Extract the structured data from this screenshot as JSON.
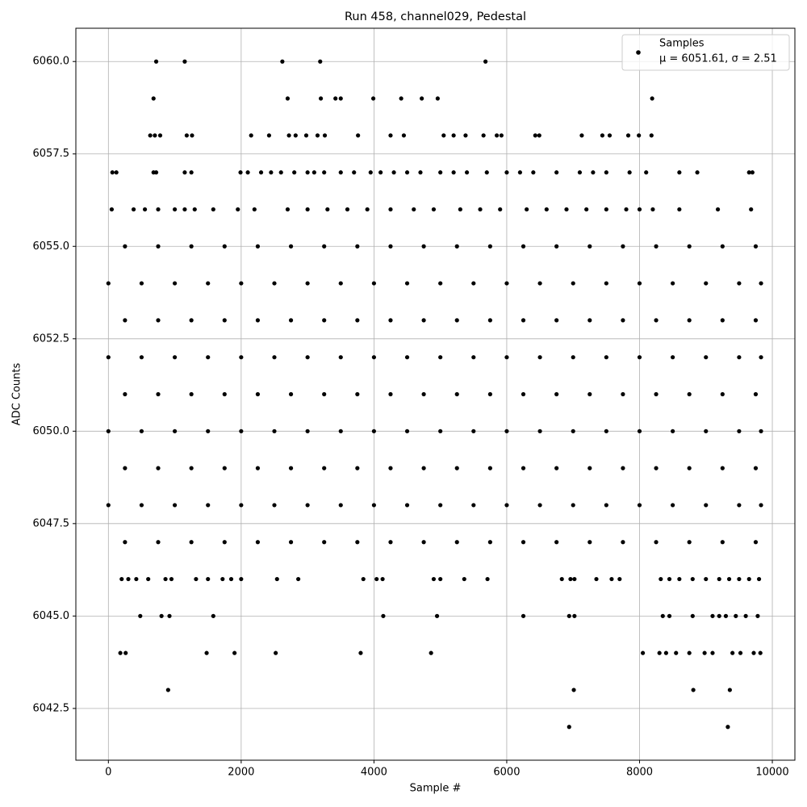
{
  "chart_data": {
    "type": "scatter",
    "title": "Run 458, channel029, Pedestal",
    "x_label": "Sample #",
    "y_label": "ADC Counts",
    "legend_note": "μ = 6051.61, σ = 2.51",
    "legend_position": "upper right",
    "grid": true,
    "xlim": [
      -490,
      10340
    ],
    "ylim": [
      6041.1,
      6060.9
    ],
    "xticks": [
      0,
      2000,
      4000,
      6000,
      8000,
      10000
    ],
    "yticks": [
      6042.5,
      {
        "value": 6045,
        "label": "6045.0"
      },
      6047.5,
      {
        "value": 6050,
        "label": "6050.0"
      },
      6052.5,
      {
        "value": 6055,
        "label": "6055.0"
      },
      6057.5,
      {
        "value": 6060,
        "label": "6060.0"
      }
    ],
    "x": [
      720,
      1150,
      2620,
      3190,
      5680,
      680,
      2700,
      3200,
      3420,
      3500,
      3990,
      4410,
      4720,
      4960,
      8190,
      630,
      700,
      780,
      1180,
      1260,
      2150,
      2420,
      2720,
      2820,
      2980,
      3150,
      3260,
      3760,
      4250,
      4450,
      5050,
      5200,
      5380,
      5650,
      5850,
      5920,
      6430,
      6490,
      7130,
      7440,
      7550,
      7830,
      7990,
      8180,
      60,
      120,
      680,
      720,
      1150,
      1250,
      1990,
      2100,
      2300,
      2450,
      2600,
      2800,
      3000,
      3100,
      3250,
      3500,
      3700,
      3950,
      4100,
      4300,
      4500,
      4700,
      5000,
      5200,
      5400,
      5700,
      6000,
      6200,
      6400,
      6750,
      7100,
      7300,
      7500,
      7850,
      8100,
      8600,
      8870,
      9650,
      9700,
      50,
      380,
      550,
      750,
      1000,
      1150,
      1300,
      1580,
      1950,
      2200,
      2700,
      3000,
      3300,
      3600,
      3900,
      4250,
      4600,
      4900,
      5300,
      5600,
      5900,
      6300,
      6600,
      6900,
      7200,
      7500,
      7800,
      8000,
      8200,
      8600,
      9180,
      9680,
      250,
      750,
      1250,
      1750,
      2250,
      2750,
      3250,
      3750,
      4250,
      4750,
      5250,
      5750,
      6250,
      6750,
      7250,
      7750,
      8250,
      8750,
      9250,
      9750,
      0,
      500,
      1000,
      1500,
      2000,
      2500,
      3000,
      3500,
      4000,
      4500,
      5000,
      5500,
      6000,
      6500,
      7000,
      7500,
      8000,
      8500,
      9000,
      9500,
      9830,
      250,
      750,
      1250,
      1750,
      2250,
      2750,
      3250,
      3750,
      4250,
      4750,
      5250,
      5750,
      6250,
      6750,
      7250,
      7750,
      8250,
      8750,
      9250,
      9750,
      0,
      500,
      1000,
      1500,
      2000,
      2500,
      3000,
      3500,
      4000,
      4500,
      5000,
      5500,
      6000,
      6500,
      7000,
      7500,
      8000,
      8500,
      9000,
      9500,
      9830,
      250,
      750,
      1250,
      1750,
      2250,
      2750,
      3250,
      3750,
      4250,
      4750,
      5250,
      5750,
      6250,
      6750,
      7250,
      7750,
      8250,
      8750,
      9250,
      9750,
      0,
      500,
      1000,
      1500,
      2000,
      2500,
      3000,
      3500,
      4000,
      4500,
      5000,
      5500,
      6000,
      6500,
      7000,
      7500,
      8000,
      8500,
      9000,
      9500,
      9830,
      250,
      750,
      1250,
      1750,
      2250,
      2750,
      3250,
      3750,
      4250,
      4750,
      5250,
      5750,
      6250,
      6750,
      7250,
      7750,
      8250,
      8750,
      9250,
      9750,
      0,
      500,
      1000,
      1500,
      2000,
      2500,
      3000,
      3500,
      4000,
      4500,
      5000,
      5500,
      6000,
      6500,
      7000,
      7500,
      8000,
      8500,
      9000,
      9500,
      9830,
      250,
      750,
      1250,
      1750,
      2250,
      2750,
      3250,
      3750,
      4250,
      4750,
      5250,
      5750,
      6250,
      6750,
      7250,
      7750,
      8250,
      8750,
      9250,
      9750,
      200,
      300,
      420,
      600,
      860,
      950,
      1320,
      1500,
      1720,
      1850,
      2000,
      2540,
      2860,
      3840,
      4040,
      4130,
      4900,
      5000,
      5360,
      5710,
      6830,
      6960,
      7020,
      7350,
      7580,
      7700,
      8320,
      8450,
      8600,
      8800,
      9000,
      9200,
      9350,
      9500,
      9650,
      9800,
      480,
      800,
      920,
      1580,
      4140,
      4950,
      6250,
      6940,
      7020,
      8350,
      8450,
      8800,
      9100,
      9200,
      9300,
      9450,
      9600,
      9780,
      180,
      260,
      1480,
      1900,
      2520,
      3800,
      4860,
      8050,
      8300,
      8400,
      8550,
      8750,
      8980,
      9100,
      9400,
      9520,
      9720,
      9820,
      900,
      7010,
      8810,
      9360,
      6940,
      9330
    ],
    "series": [
      {
        "name": "Samples",
        "color": "#000000",
        "values": [
          6060,
          6060,
          6060,
          6060,
          6060,
          6059,
          6059,
          6059,
          6059,
          6059,
          6059,
          6059,
          6059,
          6059,
          6059,
          6058,
          6058,
          6058,
          6058,
          6058,
          6058,
          6058,
          6058,
          6058,
          6058,
          6058,
          6058,
          6058,
          6058,
          6058,
          6058,
          6058,
          6058,
          6058,
          6058,
          6058,
          6058,
          6058,
          6058,
          6058,
          6058,
          6058,
          6058,
          6058,
          6057,
          6057,
          6057,
          6057,
          6057,
          6057,
          6057,
          6057,
          6057,
          6057,
          6057,
          6057,
          6057,
          6057,
          6057,
          6057,
          6057,
          6057,
          6057,
          6057,
          6057,
          6057,
          6057,
          6057,
          6057,
          6057,
          6057,
          6057,
          6057,
          6057,
          6057,
          6057,
          6057,
          6057,
          6057,
          6057,
          6057,
          6057,
          6057,
          6056,
          6056,
          6056,
          6056,
          6056,
          6056,
          6056,
          6056,
          6056,
          6056,
          6056,
          6056,
          6056,
          6056,
          6056,
          6056,
          6056,
          6056,
          6056,
          6056,
          6056,
          6056,
          6056,
          6056,
          6056,
          6056,
          6056,
          6056,
          6056,
          6056,
          6056,
          6056,
          6055,
          6055,
          6055,
          6055,
          6055,
          6055,
          6055,
          6055,
          6055,
          6055,
          6055,
          6055,
          6055,
          6055,
          6055,
          6055,
          6055,
          6055,
          6055,
          6055,
          6054,
          6054,
          6054,
          6054,
          6054,
          6054,
          6054,
          6054,
          6054,
          6054,
          6054,
          6054,
          6054,
          6054,
          6054,
          6054,
          6054,
          6054,
          6054,
          6054,
          6054,
          6053,
          6053,
          6053,
          6053,
          6053,
          6053,
          6053,
          6053,
          6053,
          6053,
          6053,
          6053,
          6053,
          6053,
          6053,
          6053,
          6053,
          6053,
          6053,
          6053,
          6052,
          6052,
          6052,
          6052,
          6052,
          6052,
          6052,
          6052,
          6052,
          6052,
          6052,
          6052,
          6052,
          6052,
          6052,
          6052,
          6052,
          6052,
          6052,
          6052,
          6052,
          6051,
          6051,
          6051,
          6051,
          6051,
          6051,
          6051,
          6051,
          6051,
          6051,
          6051,
          6051,
          6051,
          6051,
          6051,
          6051,
          6051,
          6051,
          6051,
          6051,
          6050,
          6050,
          6050,
          6050,
          6050,
          6050,
          6050,
          6050,
          6050,
          6050,
          6050,
          6050,
          6050,
          6050,
          6050,
          6050,
          6050,
          6050,
          6050,
          6050,
          6050,
          6049,
          6049,
          6049,
          6049,
          6049,
          6049,
          6049,
          6049,
          6049,
          6049,
          6049,
          6049,
          6049,
          6049,
          6049,
          6049,
          6049,
          6049,
          6049,
          6049,
          6048,
          6048,
          6048,
          6048,
          6048,
          6048,
          6048,
          6048,
          6048,
          6048,
          6048,
          6048,
          6048,
          6048,
          6048,
          6048,
          6048,
          6048,
          6048,
          6048,
          6048,
          6047,
          6047,
          6047,
          6047,
          6047,
          6047,
          6047,
          6047,
          6047,
          6047,
          6047,
          6047,
          6047,
          6047,
          6047,
          6047,
          6047,
          6047,
          6047,
          6047,
          6046,
          6046,
          6046,
          6046,
          6046,
          6046,
          6046,
          6046,
          6046,
          6046,
          6046,
          6046,
          6046,
          6046,
          6046,
          6046,
          6046,
          6046,
          6046,
          6046,
          6046,
          6046,
          6046,
          6046,
          6046,
          6046,
          6046,
          6046,
          6046,
          6046,
          6046,
          6046,
          6046,
          6046,
          6046,
          6046,
          6045,
          6045,
          6045,
          6045,
          6045,
          6045,
          6045,
          6045,
          6045,
          6045,
          6045,
          6045,
          6045,
          6045,
          6045,
          6045,
          6045,
          6045,
          6044,
          6044,
          6044,
          6044,
          6044,
          6044,
          6044,
          6044,
          6044,
          6044,
          6044,
          6044,
          6044,
          6044,
          6044,
          6044,
          6044,
          6044,
          6043,
          6043,
          6043,
          6043,
          6042,
          6042
        ]
      }
    ]
  }
}
